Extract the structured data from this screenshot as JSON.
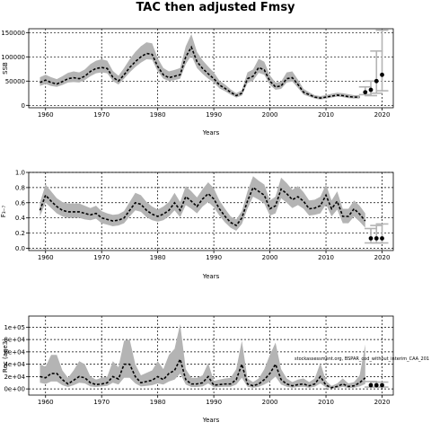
{
  "chart_data": {
    "title": "TAC then adjusted Fmsy",
    "annotation": "stockassessment.org, BSPAR_cod_without_interim_CAA_201",
    "panels": [
      {
        "id": "ssb",
        "type": "line",
        "ylabel": "SSB",
        "xlabel": "Years",
        "xlim": [
          1957,
          2022
        ],
        "ylim": [
          -5000,
          158000
        ],
        "xticks": [
          1960,
          1970,
          1980,
          1990,
          2000,
          2010,
          2020
        ],
        "yticks": [
          0,
          50000,
          100000,
          150000
        ],
        "ytick_labels": [
          "0",
          "50000",
          "100000",
          "150000"
        ],
        "grid": true,
        "x": [
          1959,
          1960,
          1961,
          1962,
          1963,
          1964,
          1965,
          1966,
          1967,
          1968,
          1969,
          1970,
          1971,
          1972,
          1973,
          1974,
          1975,
          1976,
          1977,
          1978,
          1979,
          1980,
          1981,
          1982,
          1983,
          1984,
          1985,
          1986,
          1987,
          1988,
          1989,
          1990,
          1991,
          1992,
          1993,
          1994,
          1995,
          1996,
          1997,
          1998,
          1999,
          2000,
          2001,
          2002,
          2003,
          2004,
          2005,
          2006,
          2007,
          2008,
          2009,
          2010,
          2011,
          2012,
          2013,
          2014,
          2015,
          2016
        ],
        "median": [
          47000,
          52000,
          47000,
          44000,
          49000,
          55000,
          57000,
          55000,
          60000,
          70000,
          76000,
          78000,
          76000,
          58000,
          50000,
          63000,
          78000,
          90000,
          100000,
          107000,
          105000,
          80000,
          63000,
          57000,
          60000,
          63000,
          100000,
          120000,
          90000,
          76000,
          65000,
          55000,
          42000,
          35000,
          27000,
          20000,
          25000,
          55000,
          60000,
          78000,
          73000,
          50000,
          38000,
          40000,
          55000,
          57000,
          43000,
          27000,
          22000,
          17000,
          15000,
          17000,
          19000,
          21000,
          20000,
          18000,
          17000,
          17000
        ],
        "lower": [
          40000,
          44000,
          40000,
          38000,
          42000,
          47000,
          48000,
          47000,
          52000,
          60000,
          66000,
          68000,
          66000,
          50000,
          43000,
          55000,
          68000,
          79000,
          88000,
          95000,
          94000,
          70000,
          55000,
          50000,
          52000,
          55000,
          85000,
          103000,
          77000,
          65000,
          55000,
          47000,
          35000,
          29000,
          22000,
          16000,
          20000,
          46000,
          51000,
          67000,
          63000,
          42000,
          32000,
          34000,
          47000,
          49000,
          36000,
          22000,
          18000,
          14000,
          12000,
          14000,
          16000,
          18000,
          17000,
          15000,
          14000,
          14000
        ],
        "upper": [
          58000,
          63000,
          58000,
          54000,
          60000,
          67000,
          70000,
          68000,
          74000,
          85000,
          92000,
          95000,
          92000,
          71000,
          61000,
          77000,
          95000,
          110000,
          122000,
          130000,
          128000,
          97000,
          77000,
          70000,
          73000,
          77000,
          122000,
          147000,
          110000,
          93000,
          80000,
          68000,
          51000,
          43000,
          33000,
          25000,
          31000,
          68000,
          74000,
          96000,
          90000,
          62000,
          47000,
          49000,
          68000,
          70000,
          53000,
          34000,
          27000,
          21000,
          19000,
          21000,
          24000,
          26000,
          25000,
          23000,
          21000,
          21000
        ],
        "forecast": [
          {
            "x": 2017,
            "median": 27000,
            "lower": 22000,
            "upper": 38000
          },
          {
            "x": 2018,
            "median": 32000,
            "lower": 20000,
            "upper": 50000
          },
          {
            "x": 2019,
            "median": 50000,
            "lower": 25000,
            "upper": 112000
          },
          {
            "x": 2020,
            "median": 63000,
            "lower": 30000,
            "upper": 155000
          }
        ]
      },
      {
        "id": "f",
        "type": "line",
        "ylabel": "F₃₋₇",
        "xlabel": "Years",
        "xlim": [
          1957,
          2022
        ],
        "ylim": [
          -0.03,
          1.0
        ],
        "xticks": [
          1960,
          1970,
          1980,
          1990,
          2000,
          2010,
          2020
        ],
        "yticks": [
          0.0,
          0.2,
          0.4,
          0.6,
          0.8,
          1.0
        ],
        "ytick_labels": [
          "0.0",
          "0.2",
          "0.4",
          "0.6",
          "0.8",
          "1.0"
        ],
        "grid": true,
        "x": [
          1959,
          1960,
          1961,
          1962,
          1963,
          1964,
          1965,
          1966,
          1967,
          1968,
          1969,
          1970,
          1971,
          1972,
          1973,
          1974,
          1975,
          1976,
          1977,
          1978,
          1979,
          1980,
          1981,
          1982,
          1983,
          1984,
          1985,
          1986,
          1987,
          1988,
          1989,
          1990,
          1991,
          1992,
          1993,
          1994,
          1995,
          1996,
          1997,
          1998,
          1999,
          2000,
          2001,
          2002,
          2003,
          2004,
          2005,
          2006,
          2007,
          2008,
          2009,
          2010,
          2011,
          2012,
          2013,
          2014,
          2015,
          2016,
          2017
        ],
        "median": [
          0.5,
          0.7,
          0.62,
          0.55,
          0.5,
          0.48,
          0.48,
          0.48,
          0.46,
          0.44,
          0.46,
          0.4,
          0.38,
          0.36,
          0.37,
          0.4,
          0.5,
          0.6,
          0.58,
          0.5,
          0.45,
          0.42,
          0.45,
          0.5,
          0.6,
          0.5,
          0.68,
          0.62,
          0.55,
          0.65,
          0.72,
          0.65,
          0.52,
          0.42,
          0.34,
          0.3,
          0.4,
          0.62,
          0.8,
          0.75,
          0.7,
          0.52,
          0.56,
          0.78,
          0.72,
          0.64,
          0.68,
          0.62,
          0.52,
          0.53,
          0.56,
          0.7,
          0.52,
          0.62,
          0.42,
          0.42,
          0.52,
          0.45,
          0.36
        ],
        "lower": [
          0.42,
          0.6,
          0.53,
          0.46,
          0.42,
          0.4,
          0.4,
          0.4,
          0.38,
          0.37,
          0.39,
          0.33,
          0.31,
          0.29,
          0.3,
          0.33,
          0.42,
          0.5,
          0.48,
          0.41,
          0.37,
          0.35,
          0.37,
          0.42,
          0.5,
          0.41,
          0.57,
          0.52,
          0.46,
          0.55,
          0.61,
          0.54,
          0.43,
          0.34,
          0.27,
          0.23,
          0.32,
          0.52,
          0.68,
          0.64,
          0.59,
          0.43,
          0.46,
          0.66,
          0.6,
          0.53,
          0.57,
          0.52,
          0.43,
          0.44,
          0.46,
          0.58,
          0.42,
          0.51,
          0.33,
          0.33,
          0.42,
          0.35,
          0.27
        ],
        "upper": [
          0.6,
          0.84,
          0.75,
          0.66,
          0.61,
          0.59,
          0.59,
          0.59,
          0.56,
          0.53,
          0.56,
          0.49,
          0.46,
          0.44,
          0.45,
          0.49,
          0.61,
          0.73,
          0.7,
          0.61,
          0.55,
          0.51,
          0.55,
          0.61,
          0.73,
          0.61,
          0.82,
          0.75,
          0.67,
          0.78,
          0.87,
          0.79,
          0.63,
          0.52,
          0.42,
          0.38,
          0.49,
          0.75,
          0.95,
          0.89,
          0.84,
          0.63,
          0.68,
          0.93,
          0.86,
          0.77,
          0.82,
          0.74,
          0.63,
          0.64,
          0.68,
          0.84,
          0.63,
          0.75,
          0.52,
          0.52,
          0.63,
          0.56,
          0.46
        ],
        "forecast": [
          {
            "x": 2018,
            "median": 0.13,
            "lower": 0.07,
            "upper": 0.26
          },
          {
            "x": 2019,
            "median": 0.13,
            "lower": 0.07,
            "upper": 0.3
          },
          {
            "x": 2020,
            "median": 0.13,
            "lower": 0.07,
            "upper": 0.32
          }
        ]
      },
      {
        "id": "rec",
        "type": "line",
        "ylabel": "Rec (age3)",
        "xlabel": "Years",
        "xlim": [
          1957,
          2022
        ],
        "ylim": [
          -10000,
          118000
        ],
        "xticks": [
          1960,
          1970,
          1980,
          1990,
          2000,
          2010,
          2020
        ],
        "yticks": [
          0,
          20000,
          40000,
          60000,
          80000,
          100000
        ],
        "ytick_labels": [
          "0e+00",
          "2e+04",
          "4e+04",
          "6e+04",
          "8e+04",
          "1e+05"
        ],
        "grid": true,
        "x": [
          1959,
          1960,
          1961,
          1962,
          1963,
          1964,
          1965,
          1966,
          1967,
          1968,
          1969,
          1970,
          1971,
          1972,
          1973,
          1974,
          1975,
          1976,
          1977,
          1978,
          1979,
          1980,
          1981,
          1982,
          1983,
          1984,
          1985,
          1986,
          1987,
          1988,
          1989,
          1990,
          1991,
          1992,
          1993,
          1994,
          1995,
          1996,
          1997,
          1998,
          1999,
          2000,
          2001,
          2002,
          2003,
          2004,
          2005,
          2006,
          2007,
          2008,
          2009,
          2010,
          2011,
          2012,
          2013,
          2014,
          2015,
          2016,
          2017
        ],
        "median": [
          20000,
          18000,
          25000,
          25000,
          15000,
          8000,
          14000,
          20000,
          18000,
          10000,
          7000,
          8000,
          10000,
          20000,
          16000,
          40000,
          40000,
          20000,
          10000,
          12000,
          14000,
          20000,
          15000,
          25000,
          30000,
          48000,
          15000,
          8000,
          8000,
          10000,
          20000,
          6000,
          7000,
          8000,
          8000,
          15000,
          40000,
          8000,
          5000,
          8000,
          15000,
          25000,
          40000,
          15000,
          8000,
          5000,
          7000,
          8000,
          5000,
          8000,
          20000,
          6000,
          2000,
          4000,
          8000,
          4000,
          5000,
          10000,
          18000
        ],
        "lower": [
          10000,
          8000,
          12000,
          12000,
          6000,
          3000,
          6000,
          10000,
          9000,
          4000,
          3000,
          4000,
          5000,
          10000,
          7000,
          18000,
          18000,
          9000,
          4000,
          5000,
          6000,
          9000,
          7000,
          12000,
          15000,
          25000,
          7000,
          3000,
          3000,
          4000,
          9000,
          2500,
          3000,
          3500,
          3500,
          7000,
          18000,
          3500,
          2000,
          3500,
          7000,
          12000,
          20000,
          7000,
          3500,
          2000,
          3000,
          3500,
          2000,
          3500,
          9000,
          2500,
          800,
          1500,
          3500,
          1500,
          2000,
          4000,
          8000
        ],
        "upper": [
          40000,
          36000,
          55000,
          55000,
          30000,
          18000,
          30000,
          45000,
          40000,
          20000,
          15000,
          18000,
          20000,
          45000,
          35000,
          78000,
          80000,
          40000,
          22000,
          26000,
          30000,
          45000,
          32000,
          55000,
          65000,
          105000,
          32000,
          18000,
          18000,
          22000,
          42000,
          13000,
          15000,
          17000,
          18000,
          32000,
          78000,
          17000,
          11000,
          17000,
          32000,
          55000,
          75000,
          32000,
          17000,
          11000,
          15000,
          17000,
          11000,
          17000,
          42000,
          13000,
          5000,
          9000,
          17000,
          9000,
          11000,
          22000,
          72000
        ],
        "forecast": [
          {
            "x": 2018,
            "median": 6000,
            "lower": 3000,
            "upper": 12000
          },
          {
            "x": 2019,
            "median": 6000,
            "lower": 3000,
            "upper": 11000
          },
          {
            "x": 2020,
            "median": 6000,
            "lower": 3000,
            "upper": 11000
          }
        ]
      }
    ]
  }
}
